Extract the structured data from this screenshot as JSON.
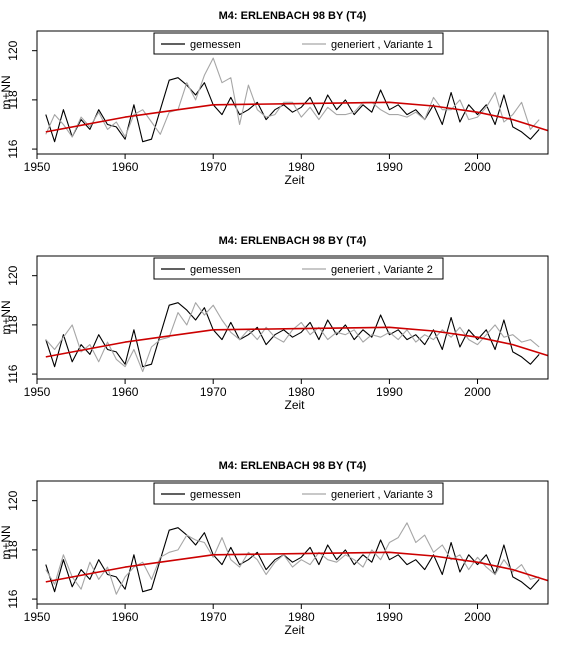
{
  "chart_data": [
    {
      "type": "line",
      "title": "M4: ERLENBACH 98 BY (T4)",
      "xlabel": "Zeit",
      "ylabel": "m+NN",
      "xlim": [
        1950,
        2008
      ],
      "ylim": [
        115.8,
        120.8
      ],
      "xticks": [
        1950,
        1960,
        1970,
        1980,
        1990,
        2000
      ],
      "yticks": [
        116,
        118,
        120
      ],
      "legend_position": "top",
      "grid": false,
      "series": [
        {
          "name": "gemessen",
          "color": "#000000",
          "x": [
            1951.0,
            1952.0,
            1953.0,
            1954.0,
            1955.0,
            1956.0,
            1957.0,
            1958.0,
            1959.0,
            1960.0,
            1961.0,
            1962.0,
            1963.0,
            1964.0,
            1965.0,
            1966.0,
            1967.0,
            1968.0,
            1969.0,
            1970.0,
            1971.0,
            1972.0,
            1973.0,
            1974.0,
            1975.0,
            1976.0,
            1977.0,
            1978.0,
            1979.0,
            1980.0,
            1981.0,
            1982.0,
            1983.0,
            1984.0,
            1985.0,
            1986.0,
            1987.0,
            1988.0,
            1989.0,
            1990.0,
            1991.0,
            1992.0,
            1993.0,
            1994.0,
            1995.0,
            1996.0,
            1997.0,
            1998.0,
            1999.0,
            2000.0,
            2001.0,
            2002.0,
            2003.0,
            2004.0,
            2005.0,
            2006.0,
            2007.0
          ],
          "y": [
            117.4,
            116.3,
            117.6,
            116.5,
            117.2,
            116.8,
            117.6,
            117.0,
            116.9,
            116.4,
            117.8,
            116.3,
            116.4,
            117.6,
            118.8,
            118.9,
            118.6,
            118.2,
            118.7,
            117.8,
            117.4,
            118.1,
            117.4,
            117.6,
            117.9,
            117.2,
            117.6,
            117.8,
            117.5,
            117.7,
            118.1,
            117.4,
            118.2,
            117.6,
            118.0,
            117.4,
            117.8,
            117.5,
            118.4,
            117.6,
            117.8,
            117.4,
            117.6,
            117.2,
            117.8,
            117.0,
            118.3,
            117.1,
            117.8,
            117.4,
            117.8,
            117.0,
            118.2,
            116.9,
            116.7,
            116.4,
            116.8
          ]
        },
        {
          "name": "generiert , Variante 1",
          "color": "#a6a6a6",
          "x": [
            1951.0,
            1952.0,
            1953.0,
            1954.0,
            1955.0,
            1956.0,
            1957.0,
            1958.0,
            1959.0,
            1960.0,
            1961.0,
            1962.0,
            1963.0,
            1964.0,
            1965.0,
            1966.0,
            1967.0,
            1968.0,
            1969.0,
            1970.0,
            1971.0,
            1972.0,
            1973.0,
            1974.0,
            1975.0,
            1976.0,
            1977.0,
            1978.0,
            1979.0,
            1980.0,
            1981.0,
            1982.0,
            1983.0,
            1984.0,
            1985.0,
            1986.0,
            1987.0,
            1988.0,
            1989.0,
            1990.0,
            1991.0,
            1992.0,
            1993.0,
            1994.0,
            1995.0,
            1996.0,
            1997.0,
            1998.0,
            1999.0,
            2000.0,
            2001.0,
            2002.0,
            2003.0,
            2004.0,
            2005.0,
            2006.0,
            2007.0
          ],
          "y": [
            116.6,
            117.4,
            117.0,
            116.5,
            117.3,
            116.9,
            117.5,
            116.8,
            117.1,
            116.5,
            117.4,
            117.6,
            117.1,
            116.6,
            117.5,
            117.6,
            118.7,
            118.0,
            119.0,
            119.7,
            118.7,
            118.9,
            117.0,
            118.6,
            117.6,
            117.3,
            117.4,
            117.9,
            117.9,
            117.3,
            117.7,
            117.2,
            117.7,
            117.4,
            117.4,
            117.5,
            117.9,
            117.9,
            117.6,
            117.4,
            117.4,
            117.3,
            117.5,
            117.2,
            118.1,
            117.6,
            117.6,
            118.0,
            117.2,
            117.3,
            117.7,
            118.3,
            117.1,
            117.4,
            117.9,
            116.8,
            117.2
          ]
        },
        {
          "name": "",
          "color": "#cc0000",
          "x": [
            1951,
            1960,
            1970,
            1980,
            1990,
            1995,
            2000,
            2004,
            2008
          ],
          "y": [
            116.7,
            117.3,
            117.8,
            117.85,
            117.9,
            117.75,
            117.5,
            117.2,
            116.75
          ]
        }
      ]
    },
    {
      "type": "line",
      "title": "M4: ERLENBACH 98 BY (T4)",
      "xlabel": "Zeit",
      "ylabel": "m+NN",
      "xlim": [
        1950,
        2008
      ],
      "ylim": [
        115.8,
        120.8
      ],
      "xticks": [
        1950,
        1960,
        1970,
        1980,
        1990,
        2000
      ],
      "yticks": [
        116,
        118,
        120
      ],
      "legend_position": "top",
      "grid": false,
      "series": [
        {
          "name": "gemessen",
          "color": "#000000",
          "x": [
            1951.0,
            1952.0,
            1953.0,
            1954.0,
            1955.0,
            1956.0,
            1957.0,
            1958.0,
            1959.0,
            1960.0,
            1961.0,
            1962.0,
            1963.0,
            1964.0,
            1965.0,
            1966.0,
            1967.0,
            1968.0,
            1969.0,
            1970.0,
            1971.0,
            1972.0,
            1973.0,
            1974.0,
            1975.0,
            1976.0,
            1977.0,
            1978.0,
            1979.0,
            1980.0,
            1981.0,
            1982.0,
            1983.0,
            1984.0,
            1985.0,
            1986.0,
            1987.0,
            1988.0,
            1989.0,
            1990.0,
            1991.0,
            1992.0,
            1993.0,
            1994.0,
            1995.0,
            1996.0,
            1997.0,
            1998.0,
            1999.0,
            2000.0,
            2001.0,
            2002.0,
            2003.0,
            2004.0,
            2005.0,
            2006.0,
            2007.0
          ],
          "y": [
            117.4,
            116.3,
            117.6,
            116.5,
            117.2,
            116.8,
            117.6,
            117.0,
            116.9,
            116.4,
            117.8,
            116.3,
            116.4,
            117.6,
            118.8,
            118.9,
            118.6,
            118.2,
            118.7,
            117.8,
            117.4,
            118.1,
            117.4,
            117.6,
            117.9,
            117.2,
            117.6,
            117.8,
            117.5,
            117.7,
            118.1,
            117.4,
            118.2,
            117.6,
            118.0,
            117.4,
            117.8,
            117.5,
            118.4,
            117.6,
            117.8,
            117.4,
            117.6,
            117.2,
            117.8,
            117.0,
            118.3,
            117.1,
            117.8,
            117.4,
            117.8,
            117.0,
            118.2,
            116.9,
            116.7,
            116.4,
            116.8
          ]
        },
        {
          "name": "generiert , Variante 2",
          "color": "#a6a6a6",
          "x": [
            1951.0,
            1952.0,
            1953.0,
            1954.0,
            1955.0,
            1956.0,
            1957.0,
            1958.0,
            1959.0,
            1960.0,
            1961.0,
            1962.0,
            1963.0,
            1964.0,
            1965.0,
            1966.0,
            1967.0,
            1968.0,
            1969.0,
            1970.0,
            1971.0,
            1972.0,
            1973.0,
            1974.0,
            1975.0,
            1976.0,
            1977.0,
            1978.0,
            1979.0,
            1980.0,
            1981.0,
            1982.0,
            1983.0,
            1984.0,
            1985.0,
            1986.0,
            1987.0,
            1988.0,
            1989.0,
            1990.0,
            1991.0,
            1992.0,
            1993.0,
            1994.0,
            1995.0,
            1996.0,
            1997.0,
            1998.0,
            1999.0,
            2000.0,
            2001.0,
            2002.0,
            2003.0,
            2004.0,
            2005.0,
            2006.0,
            2007.0
          ],
          "y": [
            117.4,
            117.0,
            117.5,
            118.0,
            116.9,
            117.2,
            116.5,
            117.3,
            116.6,
            116.3,
            117.0,
            116.1,
            117.1,
            117.4,
            117.5,
            118.5,
            118.0,
            118.9,
            118.4,
            118.8,
            118.2,
            117.7,
            117.4,
            117.8,
            117.4,
            117.9,
            117.5,
            117.3,
            117.8,
            118.1,
            117.6,
            117.9,
            117.4,
            117.7,
            117.6,
            117.8,
            117.3,
            117.6,
            117.5,
            117.7,
            117.4,
            117.8,
            117.3,
            117.6,
            117.4,
            117.8,
            117.5,
            117.9,
            117.4,
            117.2,
            117.6,
            118.0,
            117.5,
            117.6,
            117.3,
            117.4,
            117.1
          ]
        },
        {
          "name": "",
          "color": "#cc0000",
          "x": [
            1951,
            1960,
            1970,
            1980,
            1990,
            1995,
            2000,
            2004,
            2008
          ],
          "y": [
            116.7,
            117.3,
            117.8,
            117.85,
            117.9,
            117.75,
            117.5,
            117.2,
            116.75
          ]
        }
      ]
    },
    {
      "type": "line",
      "title": "M4: ERLENBACH 98 BY (T4)",
      "xlabel": "Zeit",
      "ylabel": "m+NN",
      "xlim": [
        1950,
        2008
      ],
      "ylim": [
        115.8,
        120.8
      ],
      "xticks": [
        1950,
        1960,
        1970,
        1980,
        1990,
        2000
      ],
      "yticks": [
        116,
        118,
        120
      ],
      "legend_position": "top",
      "grid": false,
      "series": [
        {
          "name": "gemessen",
          "color": "#000000",
          "x": [
            1951.0,
            1952.0,
            1953.0,
            1954.0,
            1955.0,
            1956.0,
            1957.0,
            1958.0,
            1959.0,
            1960.0,
            1961.0,
            1962.0,
            1963.0,
            1964.0,
            1965.0,
            1966.0,
            1967.0,
            1968.0,
            1969.0,
            1970.0,
            1971.0,
            1972.0,
            1973.0,
            1974.0,
            1975.0,
            1976.0,
            1977.0,
            1978.0,
            1979.0,
            1980.0,
            1981.0,
            1982.0,
            1983.0,
            1984.0,
            1985.0,
            1986.0,
            1987.0,
            1988.0,
            1989.0,
            1990.0,
            1991.0,
            1992.0,
            1993.0,
            1994.0,
            1995.0,
            1996.0,
            1997.0,
            1998.0,
            1999.0,
            2000.0,
            2001.0,
            2002.0,
            2003.0,
            2004.0,
            2005.0,
            2006.0,
            2007.0
          ],
          "y": [
            117.4,
            116.3,
            117.6,
            116.5,
            117.2,
            116.8,
            117.6,
            117.0,
            116.9,
            116.4,
            117.8,
            116.3,
            116.4,
            117.6,
            118.8,
            118.9,
            118.6,
            118.2,
            118.7,
            117.8,
            117.4,
            118.1,
            117.4,
            117.6,
            117.9,
            117.2,
            117.6,
            117.8,
            117.5,
            117.7,
            118.1,
            117.4,
            118.2,
            117.6,
            118.0,
            117.4,
            117.8,
            117.5,
            118.4,
            117.6,
            117.8,
            117.4,
            117.6,
            117.2,
            117.8,
            117.0,
            118.3,
            117.1,
            117.8,
            117.4,
            117.8,
            117.0,
            118.2,
            116.9,
            116.7,
            116.4,
            116.8
          ]
        },
        {
          "name": "generiert , Variante 3",
          "color": "#a6a6a6",
          "x": [
            1951.0,
            1952.0,
            1953.0,
            1954.0,
            1955.0,
            1956.0,
            1957.0,
            1958.0,
            1959.0,
            1960.0,
            1961.0,
            1962.0,
            1963.0,
            1964.0,
            1965.0,
            1966.0,
            1967.0,
            1968.0,
            1969.0,
            1970.0,
            1971.0,
            1972.0,
            1973.0,
            1974.0,
            1975.0,
            1976.0,
            1977.0,
            1978.0,
            1979.0,
            1980.0,
            1981.0,
            1982.0,
            1983.0,
            1984.0,
            1985.0,
            1986.0,
            1987.0,
            1988.0,
            1989.0,
            1990.0,
            1991.0,
            1992.0,
            1993.0,
            1994.0,
            1995.0,
            1996.0,
            1997.0,
            1998.0,
            1999.0,
            2000.0,
            2001.0,
            2002.0,
            2003.0,
            2004.0,
            2005.0,
            2006.0,
            2007.0
          ],
          "y": [
            117.2,
            116.6,
            117.8,
            116.9,
            116.4,
            117.5,
            116.8,
            117.3,
            116.2,
            116.9,
            117.3,
            117.5,
            116.8,
            117.7,
            117.9,
            118.0,
            118.6,
            118.4,
            118.3,
            117.7,
            118.5,
            117.6,
            117.3,
            117.9,
            117.6,
            117.0,
            117.5,
            117.8,
            117.3,
            117.6,
            117.4,
            117.9,
            117.6,
            117.5,
            117.8,
            117.6,
            117.3,
            118.0,
            117.6,
            118.3,
            118.5,
            119.1,
            118.3,
            118.6,
            117.9,
            118.2,
            117.6,
            117.8,
            117.2,
            117.7,
            117.3,
            117.0,
            117.6,
            117.1,
            117.4,
            116.8,
            116.9
          ]
        },
        {
          "name": "",
          "color": "#cc0000",
          "x": [
            1951,
            1960,
            1970,
            1980,
            1990,
            1995,
            2000,
            2004,
            2008
          ],
          "y": [
            116.7,
            117.3,
            117.8,
            117.85,
            117.9,
            117.75,
            117.5,
            117.2,
            116.75
          ]
        }
      ]
    }
  ]
}
